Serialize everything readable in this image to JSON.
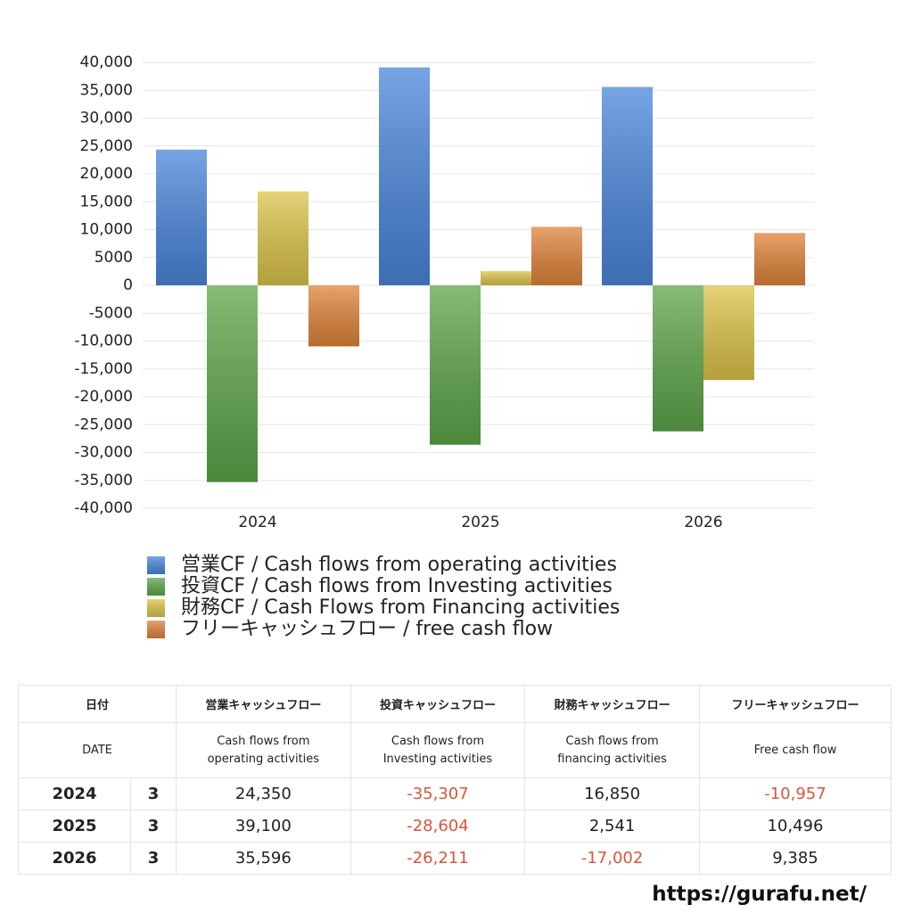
{
  "chart_data": {
    "type": "bar",
    "categories": [
      "2024",
      "2025",
      "2026"
    ],
    "series": [
      {
        "name": "営業CF / Cash flows from operating activities",
        "color": "#4a86dc",
        "values": [
          24350,
          39100,
          35596
        ],
        "value_labels": [
          "24,350",
          "39,100",
          "35,596"
        ]
      },
      {
        "name": "投資CF / Cash flows from Investing activities",
        "color": "#5ea64a",
        "values": [
          -35307,
          -28604,
          -26211
        ],
        "value_labels": [
          "-35,307",
          "-28,604",
          "-26,211"
        ]
      },
      {
        "name": "財務CF / Cash Flows from Financing activities",
        "color": "#dcc44a",
        "values": [
          16850,
          2541,
          -17002
        ],
        "value_labels": [
          "16,850",
          "2,541",
          "-17,002"
        ]
      },
      {
        "name": "フリーキャッシュフロー / free cash flow",
        "color": "#e0843a",
        "values": [
          -10957,
          10496,
          9385
        ],
        "value_labels": [
          "-10,957",
          "10,496",
          "9,385"
        ]
      }
    ],
    "ylim": [
      -40000,
      40000
    ],
    "yticks": [
      {
        "value": 40000,
        "label": "40,000"
      },
      {
        "value": 35000,
        "label": "35,000"
      },
      {
        "value": 30000,
        "label": "30,000"
      },
      {
        "value": 25000,
        "label": "25,000"
      },
      {
        "value": 20000,
        "label": "20,000"
      },
      {
        "value": 15000,
        "label": "15,000"
      },
      {
        "value": 10000,
        "label": "10,000"
      },
      5000,
      0,
      -5000,
      {
        "value": -10000,
        "label": "-10,000"
      },
      {
        "value": -15000,
        "label": "-15,000"
      },
      {
        "value": -20000,
        "label": "-20,000"
      },
      {
        "value": -25000,
        "label": "-25,000"
      },
      {
        "value": -30000,
        "label": "-30,000"
      },
      {
        "value": -35000,
        "label": "-35,000"
      },
      {
        "value": -40000,
        "label": "-40,000"
      }
    ],
    "grid": true,
    "negative_color": "#d9553b"
  },
  "table": {
    "header_ja": [
      "日付",
      "営業キャッシュフロー",
      "投資キャッシュフロー",
      "財務キャッシュフロー",
      "フリーキャッシュフロー"
    ],
    "header_en": [
      "DATE",
      "Cash flows from\noperating activities",
      "Cash flows from\nInvesting activities",
      "Cash flows from\nfinancing activities",
      "Free cash flow"
    ],
    "month": [
      3,
      3,
      3
    ]
  },
  "footer": {
    "url": "https://gurafu.net/"
  }
}
